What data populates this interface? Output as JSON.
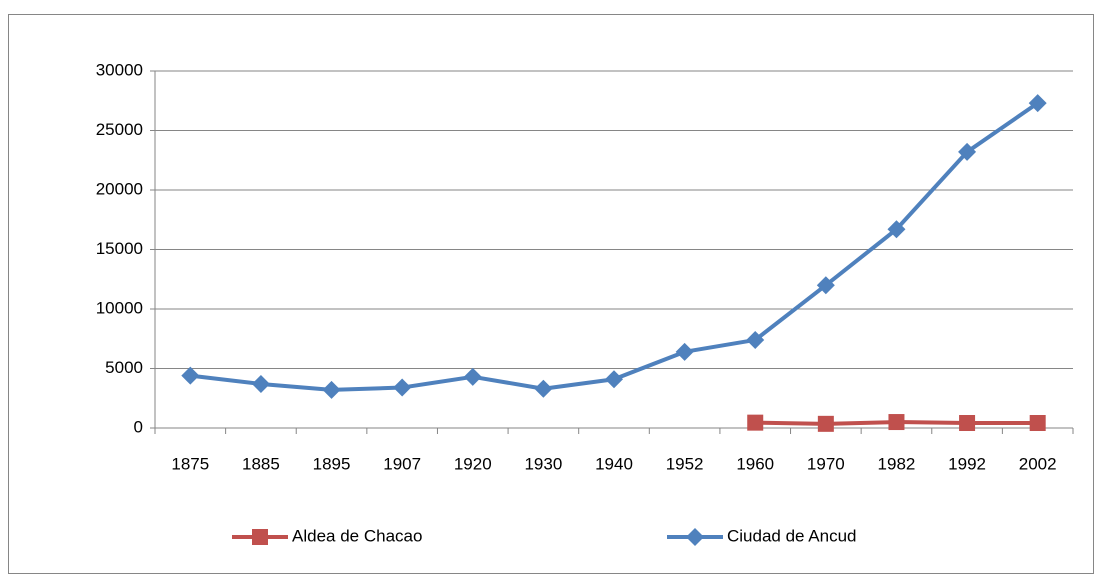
{
  "chart_data": {
    "type": "line",
    "categories": [
      "1875",
      "1885",
      "1895",
      "1907",
      "1920",
      "1930",
      "1940",
      "1952",
      "1960",
      "1970",
      "1982",
      "1992",
      "2002"
    ],
    "series": [
      {
        "name": "Aldea de Chacao",
        "color": "#c0504d",
        "marker": "square",
        "values": [
          null,
          null,
          null,
          null,
          null,
          null,
          null,
          null,
          450,
          350,
          500,
          420,
          420
        ]
      },
      {
        "name": "Ciudad de Ancud",
        "color": "#4f81bd",
        "marker": "diamond",
        "values": [
          4400,
          3700,
          3200,
          3400,
          4300,
          3300,
          4100,
          6400,
          7400,
          12000,
          16700,
          23200,
          27300
        ]
      }
    ],
    "ylim": [
      0,
      30000
    ],
    "yticks": [
      0,
      5000,
      10000,
      15000,
      20000,
      25000,
      30000
    ],
    "grid": true,
    "legend": "bottom"
  }
}
